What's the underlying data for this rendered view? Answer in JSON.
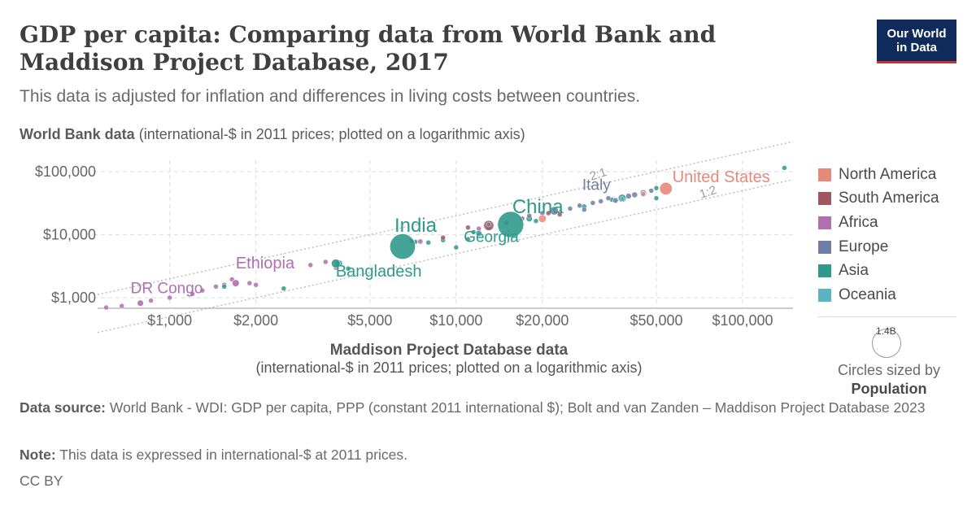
{
  "header": {
    "title": "GDP per capita: Comparing data from World Bank and Maddison Project Database, 2017",
    "subtitle": "This data is adjusted for inflation and differences in living costs between countries.",
    "logo_line1": "Our World",
    "logo_line2": "in Data"
  },
  "axes": {
    "y_label_bold": "World Bank data",
    "y_label_rest": " (international-$ in 2011 prices; plotted on a logarithmic axis)",
    "x_label_bold": "Maddison Project Database data",
    "x_label_rest": "(international-$ in 2011 prices; plotted on a logarithmic axis)"
  },
  "size_legend": {
    "circle_label": "1.4B",
    "caption": "Circles sized by",
    "caption_bold": "Population"
  },
  "footer": {
    "source_label": "Data source:",
    "source_text": " World Bank - WDI: GDP per capita, PPP (constant 2011 international $); Bolt and van Zanden – Maddison Project Database 2023",
    "note_label": "Note:",
    "note_text": " This data is expressed in international-$ at 2011 prices.",
    "license": "CC BY"
  },
  "chart_data": {
    "type": "scatter",
    "x_scale": "log",
    "y_scale": "log",
    "xlim": [
      560,
      150000
    ],
    "ylim": [
      700,
      120000
    ],
    "x_ticks": [
      {
        "value": 1000,
        "label": "$1,000"
      },
      {
        "value": 2000,
        "label": "$2,000"
      },
      {
        "value": 5000,
        "label": "$5,000"
      },
      {
        "value": 10000,
        "label": "$10,000"
      },
      {
        "value": 20000,
        "label": "$20,000"
      },
      {
        "value": 50000,
        "label": "$50,000"
      },
      {
        "value": 100000,
        "label": "$100,000"
      }
    ],
    "y_ticks": [
      {
        "value": 1000,
        "label": "$1,000"
      },
      {
        "value": 10000,
        "label": "$10,000"
      },
      {
        "value": 100000,
        "label": "$100,000"
      }
    ],
    "grid": true,
    "legend_position": "right",
    "reference_lines": [
      {
        "label": "2:1",
        "ratio": 2
      },
      {
        "label": "1:2",
        "ratio": 0.5
      }
    ],
    "regions": [
      {
        "name": "North America",
        "color": "#e58a7a"
      },
      {
        "name": "South America",
        "color": "#a0565f"
      },
      {
        "name": "Africa",
        "color": "#b06fb0"
      },
      {
        "name": "Europe",
        "color": "#6e7ea6"
      },
      {
        "name": "Asia",
        "color": "#2f9a8c"
      },
      {
        "name": "Oceania",
        "color": "#5bb3c4"
      }
    ],
    "labeled_points": [
      {
        "label": "United States",
        "region": "North America",
        "x": 54000,
        "y": 54000,
        "population_m": 325
      },
      {
        "label": "Italy",
        "region": "Europe",
        "x": 36000,
        "y": 35000,
        "population_m": 60
      },
      {
        "label": "China",
        "region": "Asia",
        "x": 15500,
        "y": 14500,
        "population_m": 1400
      },
      {
        "label": "Georgia",
        "region": "Asia",
        "x": 11500,
        "y": 11000,
        "population_m": 4
      },
      {
        "label": "India",
        "region": "Asia",
        "x": 6500,
        "y": 6500,
        "population_m": 1340
      },
      {
        "label": "Bangladesh",
        "region": "Asia",
        "x": 3800,
        "y": 3500,
        "population_m": 160
      },
      {
        "label": "Ethiopia",
        "region": "Africa",
        "x": 1700,
        "y": 1700,
        "population_m": 105
      },
      {
        "label": "DR Congo",
        "region": "Africa",
        "x": 790,
        "y": 820,
        "population_m": 81
      }
    ],
    "points": [
      {
        "region": "Africa",
        "x": 600,
        "y": 700,
        "population_m": 8
      },
      {
        "region": "Africa",
        "x": 680,
        "y": 740,
        "population_m": 12
      },
      {
        "region": "Africa",
        "x": 860,
        "y": 900,
        "population_m": 20
      },
      {
        "region": "Africa",
        "x": 1000,
        "y": 1000,
        "population_m": 15
      },
      {
        "region": "Africa",
        "x": 1200,
        "y": 1150,
        "population_m": 18
      },
      {
        "region": "Africa",
        "x": 1300,
        "y": 1300,
        "population_m": 25
      },
      {
        "region": "Africa",
        "x": 1450,
        "y": 1500,
        "population_m": 30
      },
      {
        "region": "Africa",
        "x": 1550,
        "y": 1600,
        "population_m": 20
      },
      {
        "region": "Africa",
        "x": 1650,
        "y": 1950,
        "population_m": 12
      },
      {
        "region": "Africa",
        "x": 1900,
        "y": 1700,
        "population_m": 28
      },
      {
        "region": "Africa",
        "x": 2000,
        "y": 1600,
        "population_m": 10
      },
      {
        "region": "Africa",
        "x": 3100,
        "y": 3300,
        "population_m": 6
      },
      {
        "region": "Africa",
        "x": 3500,
        "y": 3700,
        "population_m": 35
      },
      {
        "region": "Africa",
        "x": 3800,
        "y": 3000,
        "population_m": 5
      },
      {
        "region": "Africa",
        "x": 7500,
        "y": 7800,
        "population_m": 55
      },
      {
        "region": "Africa",
        "x": 12000,
        "y": 12500,
        "population_m": 41
      },
      {
        "region": "Asia",
        "x": 1550,
        "y": 1500,
        "population_m": 30
      },
      {
        "region": "Asia",
        "x": 2500,
        "y": 1400,
        "population_m": 7
      },
      {
        "region": "Asia",
        "x": 3900,
        "y": 3500,
        "population_m": 95
      },
      {
        "region": "Asia",
        "x": 4200,
        "y": 2900,
        "population_m": 18
      },
      {
        "region": "Asia",
        "x": 7200,
        "y": 7700,
        "population_m": 40
      },
      {
        "region": "Asia",
        "x": 8000,
        "y": 7500,
        "population_m": 30
      },
      {
        "region": "Asia",
        "x": 9000,
        "y": 8200,
        "population_m": 35
      },
      {
        "region": "Asia",
        "x": 10000,
        "y": 6300,
        "population_m": 8
      },
      {
        "region": "Asia",
        "x": 11000,
        "y": 8500,
        "population_m": 20
      },
      {
        "region": "Asia",
        "x": 12000,
        "y": 10500,
        "population_m": 70
      },
      {
        "region": "Asia",
        "x": 13000,
        "y": 13000,
        "population_m": 30
      },
      {
        "region": "Asia",
        "x": 18000,
        "y": 18000,
        "population_m": 80
      },
      {
        "region": "Asia",
        "x": 19000,
        "y": 16500,
        "population_m": 12
      },
      {
        "region": "Asia",
        "x": 28000,
        "y": 28000,
        "population_m": 50
      },
      {
        "region": "Asia",
        "x": 35000,
        "y": 36000,
        "population_m": 25
      },
      {
        "region": "Asia",
        "x": 38000,
        "y": 38000,
        "population_m": 126
      },
      {
        "region": "Asia",
        "x": 50000,
        "y": 38000,
        "population_m": 4
      },
      {
        "region": "Asia",
        "x": 50000,
        "y": 55000,
        "population_m": 9
      },
      {
        "region": "Asia",
        "x": 140000,
        "y": 115000,
        "population_m": 3
      },
      {
        "region": "South America",
        "x": 7000,
        "y": 8000,
        "population_m": 12
      },
      {
        "region": "South America",
        "x": 9000,
        "y": 9000,
        "population_m": 16
      },
      {
        "region": "South America",
        "x": 11000,
        "y": 13000,
        "population_m": 45
      },
      {
        "region": "South America",
        "x": 13000,
        "y": 14000,
        "population_m": 210
      },
      {
        "region": "South America",
        "x": 15000,
        "y": 15500,
        "population_m": 50
      },
      {
        "region": "South America",
        "x": 17000,
        "y": 18000,
        "population_m": 30
      },
      {
        "region": "South America",
        "x": 21000,
        "y": 22000,
        "population_m": 18
      },
      {
        "region": "South America",
        "x": 23000,
        "y": 21000,
        "population_m": 44
      },
      {
        "region": "Europe",
        "x": 13000,
        "y": 14500,
        "population_m": 10
      },
      {
        "region": "Europe",
        "x": 18000,
        "y": 20000,
        "population_m": 20
      },
      {
        "region": "Europe",
        "x": 20000,
        "y": 22000,
        "population_m": 38
      },
      {
        "region": "Europe",
        "x": 22000,
        "y": 24000,
        "population_m": 145
      },
      {
        "region": "Europe",
        "x": 25000,
        "y": 26000,
        "population_m": 10
      },
      {
        "region": "Europe",
        "x": 27000,
        "y": 29000,
        "population_m": 10
      },
      {
        "region": "Europe",
        "x": 28000,
        "y": 25000,
        "population_m": 5
      },
      {
        "region": "Europe",
        "x": 30000,
        "y": 32000,
        "population_m": 46
      },
      {
        "region": "Europe",
        "x": 32000,
        "y": 34000,
        "population_m": 6
      },
      {
        "region": "Europe",
        "x": 34000,
        "y": 38000,
        "population_m": 20
      },
      {
        "region": "Europe",
        "x": 40000,
        "y": 41000,
        "population_m": 65
      },
      {
        "region": "Europe",
        "x": 42000,
        "y": 43000,
        "population_m": 67
      },
      {
        "region": "Europe",
        "x": 45000,
        "y": 46000,
        "population_m": 82
      },
      {
        "region": "Europe",
        "x": 48000,
        "y": 50000,
        "population_m": 17
      },
      {
        "region": "Oceania",
        "x": 45000,
        "y": 45000,
        "population_m": 25
      },
      {
        "region": "Oceania",
        "x": 38000,
        "y": 37000,
        "population_m": 5
      },
      {
        "region": "North America",
        "x": 45000,
        "y": 44000,
        "population_m": 37
      },
      {
        "region": "North America",
        "x": 20000,
        "y": 18000,
        "population_m": 125
      }
    ]
  }
}
